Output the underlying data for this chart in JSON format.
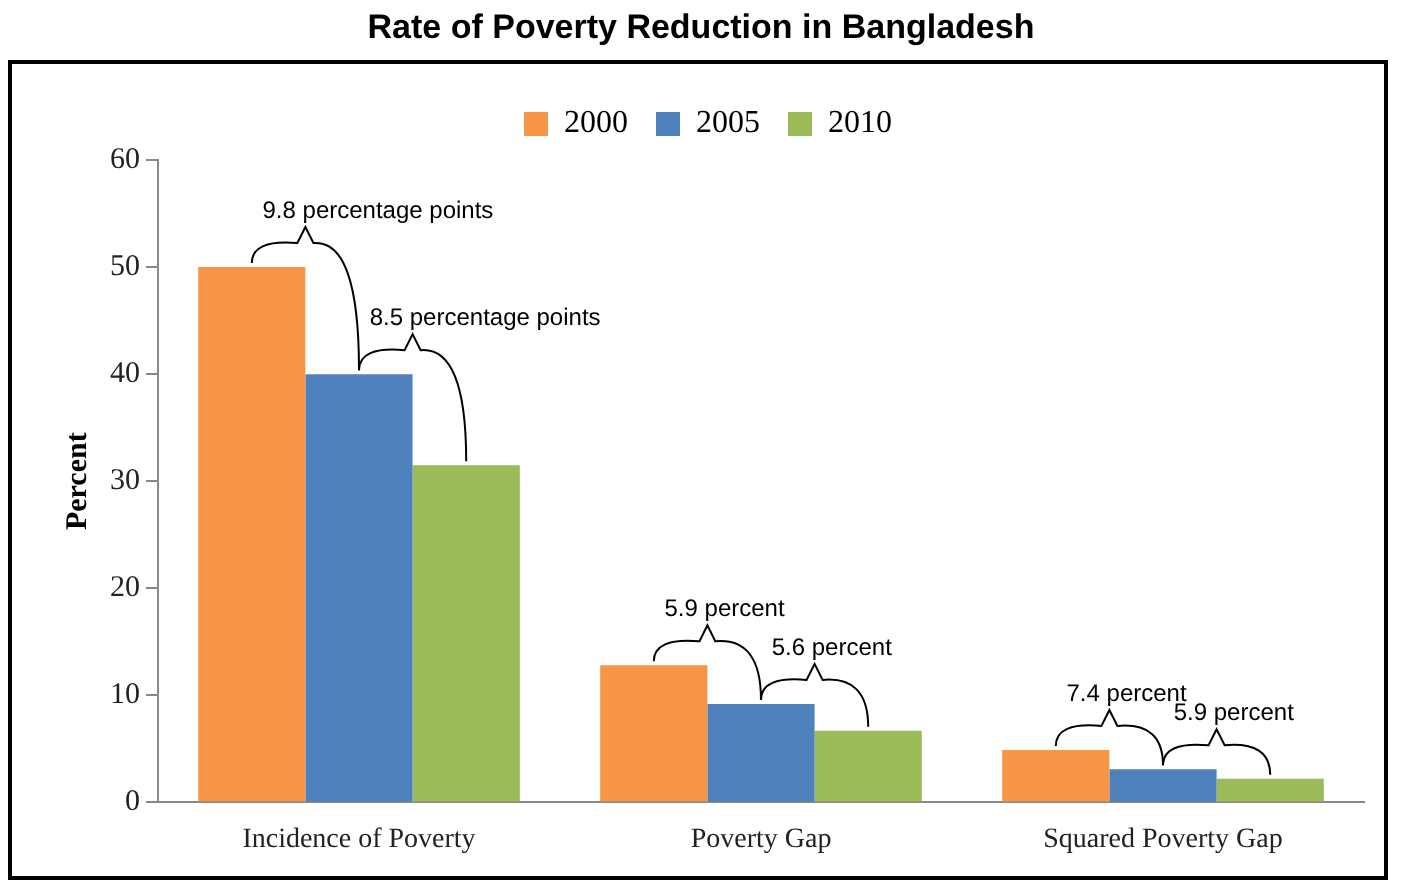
{
  "chart_data": {
    "type": "bar",
    "title": "Rate of Poverty Reduction in Bangladesh",
    "ylabel": "Percent",
    "categories": [
      "Incidence of Poverty",
      "Poverty Gap",
      "Squared Poverty Gap"
    ],
    "series": [
      {
        "name": "2000",
        "color": "#f79646",
        "values": [
          50,
          12.8,
          4.9
        ]
      },
      {
        "name": "2005",
        "color": "#4f81bd",
        "values": [
          40,
          9.2,
          3.1
        ]
      },
      {
        "name": "2010",
        "color": "#9bbb59",
        "values": [
          31.5,
          6.7,
          2.2
        ]
      }
    ],
    "ylim": [
      0,
      60
    ],
    "yticks": [
      0,
      10,
      20,
      30,
      40,
      50,
      60
    ],
    "legend": "top",
    "annotations": [
      "9.8 percentage points",
      "8.5 percentage points",
      "5.9 percent",
      "5.6 percent",
      "7.4 percent",
      "5.9 percent"
    ]
  }
}
